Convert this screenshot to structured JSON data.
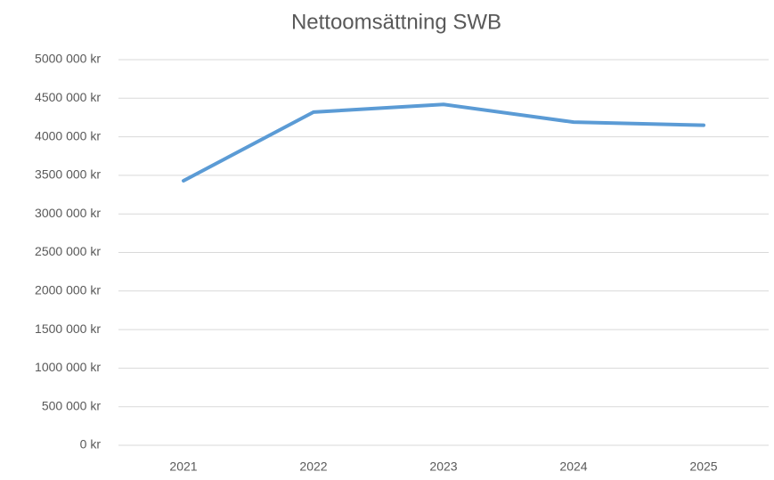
{
  "chart_data": {
    "type": "line",
    "title": "Nettoomsättning SWB",
    "categories": [
      "2021",
      "2022",
      "2023",
      "2024",
      "2025"
    ],
    "series": [
      {
        "name": "Nettoomsättning",
        "color": "#5b9bd5",
        "values": [
          3430000,
          4320000,
          4420000,
          4190000,
          4150000
        ]
      }
    ],
    "ylim": [
      0,
      5000000
    ],
    "yticks": [
      {
        "value": 0,
        "label": "0 kr"
      },
      {
        "value": 500000,
        "label": "500 000 kr"
      },
      {
        "value": 1000000,
        "label": "1000 000 kr"
      },
      {
        "value": 1500000,
        "label": "1500 000 kr"
      },
      {
        "value": 2000000,
        "label": "2000 000 kr"
      },
      {
        "value": 2500000,
        "label": "2500 000 kr"
      },
      {
        "value": 3000000,
        "label": "3000 000 kr"
      },
      {
        "value": 3500000,
        "label": "3500 000 kr"
      },
      {
        "value": 4000000,
        "label": "4000 000 kr"
      },
      {
        "value": 4500000,
        "label": "4500 000 kr"
      },
      {
        "value": 5000000,
        "label": "5000 000 kr"
      }
    ],
    "grid": true
  }
}
